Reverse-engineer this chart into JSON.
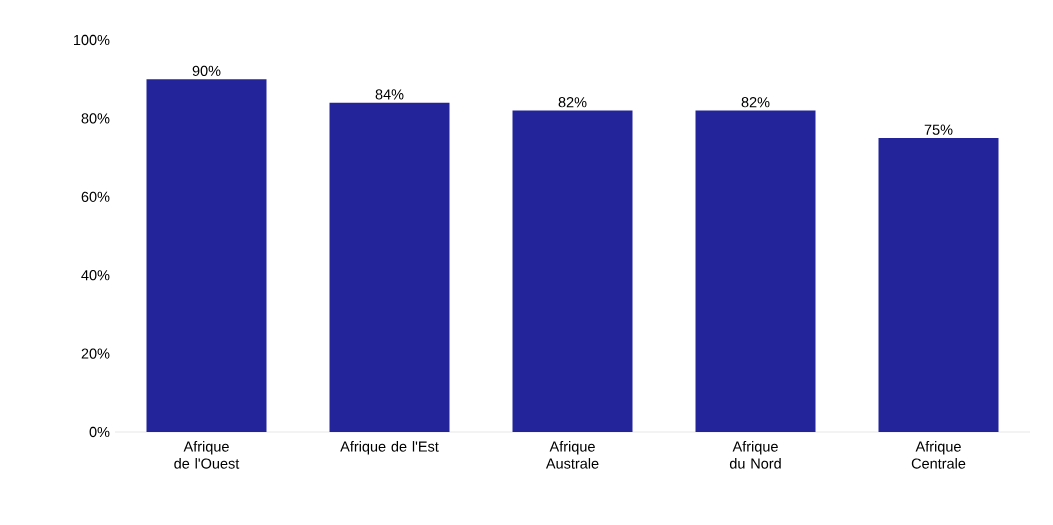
{
  "chart_data": {
    "type": "bar",
    "categories": [
      "Afrique de l'Ouest",
      "Afrique de l'Est",
      "Afrique Australe",
      "Afrique du Nord",
      "Afrique Centrale"
    ],
    "values": [
      90,
      84,
      82,
      82,
      75
    ],
    "value_labels": [
      "90%",
      "84%",
      "82%",
      "82%",
      "75%"
    ],
    "color": "#24249a",
    "ylim": [
      0,
      100
    ],
    "yticks": [
      {
        "value": 0,
        "label": "0%"
      },
      {
        "value": 20,
        "label": "20%"
      },
      {
        "value": 40,
        "label": "40%"
      },
      {
        "value": 60,
        "label": "60%"
      },
      {
        "value": 80,
        "label": "80%"
      },
      {
        "value": 100,
        "label": "100%"
      }
    ]
  }
}
